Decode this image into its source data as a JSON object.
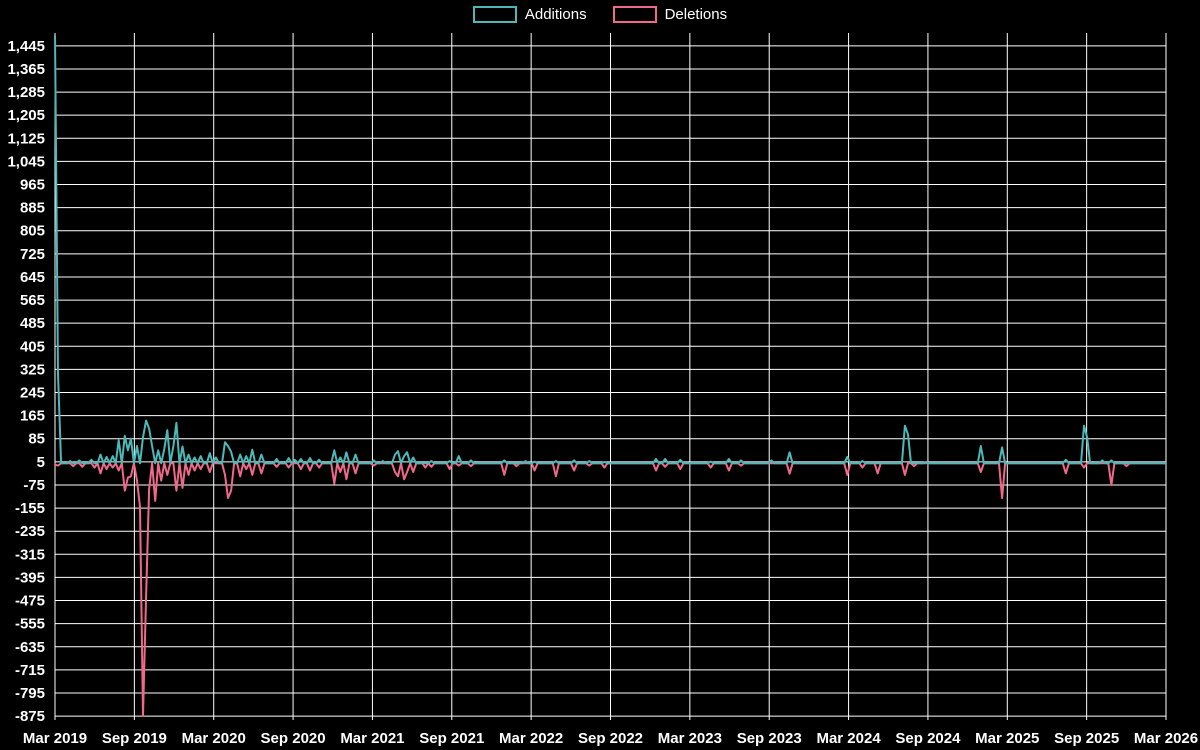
{
  "legend": {
    "items": [
      {
        "label": "Additions",
        "color": "#4cb8b8"
      },
      {
        "label": "Deletions",
        "color": "#f2688c"
      }
    ]
  },
  "chart_data": {
    "type": "line",
    "title": "",
    "xlabel": "",
    "ylabel": "",
    "legend_position": "top-center",
    "grid": true,
    "background_color": "#000000",
    "grid_color": "#ffffff",
    "text_color": "#ffffff",
    "series_colors": {
      "additions": "#4cb8b8",
      "deletions": "#f2688c"
    },
    "y_axis": {
      "min": -875,
      "max": 1445,
      "step": 80
    },
    "y_ticks": [
      {
        "v": 1445,
        "label": "1,445"
      },
      {
        "v": 1365,
        "label": "1,365"
      },
      {
        "v": 1285,
        "label": "1,285"
      },
      {
        "v": 1205,
        "label": "1,205"
      },
      {
        "v": 1125,
        "label": "1,125"
      },
      {
        "v": 1045,
        "label": "1,045"
      },
      {
        "v": 965,
        "label": "965"
      },
      {
        "v": 885,
        "label": "885"
      },
      {
        "v": 805,
        "label": "805"
      },
      {
        "v": 725,
        "label": "725"
      },
      {
        "v": 645,
        "label": "645"
      },
      {
        "v": 565,
        "label": "565"
      },
      {
        "v": 485,
        "label": "485"
      },
      {
        "v": 405,
        "label": "405"
      },
      {
        "v": 325,
        "label": "325"
      },
      {
        "v": 245,
        "label": "245"
      },
      {
        "v": 165,
        "label": "165"
      },
      {
        "v": 85,
        "label": "85"
      },
      {
        "v": 5,
        "label": "5"
      },
      {
        "v": -75,
        "label": "-75"
      },
      {
        "v": -155,
        "label": "-155"
      },
      {
        "v": -235,
        "label": "-235"
      },
      {
        "v": -315,
        "label": "-315"
      },
      {
        "v": -395,
        "label": "-395"
      },
      {
        "v": -475,
        "label": "-475"
      },
      {
        "v": -555,
        "label": "-555"
      },
      {
        "v": -635,
        "label": "-635"
      },
      {
        "v": -715,
        "label": "-715"
      },
      {
        "v": -795,
        "label": "-795"
      },
      {
        "v": -875,
        "label": "-875"
      }
    ],
    "x_ticks": [
      "Mar 2019",
      "Sep 2019",
      "Mar 2020",
      "Sep 2020",
      "Mar 2021",
      "Sep 2021",
      "Mar 2022",
      "Sep 2022",
      "Mar 2023",
      "Sep 2023",
      "Mar 2024",
      "Sep 2024",
      "Mar 2025",
      "Sep 2025",
      "Mar 2026"
    ],
    "x_unit": "week",
    "weeks": 367,
    "baseline_value": 0,
    "series": [
      {
        "name": "Additions",
        "peak": 1481,
        "spikes": {
          "0": 1481,
          "1": 310,
          "5": 8,
          "8": 10,
          "12": 12,
          "15": 30,
          "17": 22,
          "19": 25,
          "21": 80,
          "23": 95,
          "24": 45,
          "25": 85,
          "27": 60,
          "29": 90,
          "30": 148,
          "31": 120,
          "32": 60,
          "34": 45,
          "36": 50,
          "37": 115,
          "39": 60,
          "40": 140,
          "42": 58,
          "44": 30,
          "46": 20,
          "48": 25,
          "51": 35,
          "53": 20,
          "56": 73,
          "57": 60,
          "58": 40,
          "61": 30,
          "63": 25,
          "65": 47,
          "68": 30,
          "73": 15,
          "77": 18,
          "79": 12,
          "81": 15,
          "84": 18,
          "87": 12,
          "92": 45,
          "94": 20,
          "96": 38,
          "99": 30,
          "105": 10,
          "108": 8,
          "112": 30,
          "113": 42,
          "115": 25,
          "116": 38,
          "118": 20,
          "124": 8,
          "130": 8,
          "133": 25,
          "137": 10,
          "148": 10,
          "155": 8,
          "158": 6,
          "165": 8,
          "171": 10,
          "176": 8,
          "181": 5,
          "198": 15,
          "201": 15,
          "206": 12,
          "216": 6,
          "222": 15,
          "226": 10,
          "236": 10,
          "242": 38,
          "261": 22,
          "266": 8,
          "280": 130,
          "281": 100,
          "287": 5,
          "305": 60,
          "312": 55,
          "333": 12,
          "339": 130,
          "340": 90,
          "345": 10,
          "348": 10
        }
      },
      {
        "name": "Deletions",
        "trough": -875,
        "spikes": {
          "0": -5,
          "1": -8,
          "6": -10,
          "9": -12,
          "13": -15,
          "15": -35,
          "17": -20,
          "19": -15,
          "21": -25,
          "23": -95,
          "24": -50,
          "25": -45,
          "27": -60,
          "28": -150,
          "29": -875,
          "30": -460,
          "31": -90,
          "33": -130,
          "35": -60,
          "37": -40,
          "40": -95,
          "42": -85,
          "44": -40,
          "46": -25,
          "48": -20,
          "51": -30,
          "56": -40,
          "57": -120,
          "58": -95,
          "61": -45,
          "63": -20,
          "65": -40,
          "68": -35,
          "73": -12,
          "77": -15,
          "81": -20,
          "84": -25,
          "87": -15,
          "92": -70,
          "94": -30,
          "96": -55,
          "99": -35,
          "105": -8,
          "112": -30,
          "113": -45,
          "115": -55,
          "116": -30,
          "118": -30,
          "122": -15,
          "124": -12,
          "130": -20,
          "133": -8,
          "137": -10,
          "148": -40,
          "152": -10,
          "158": -25,
          "165": -45,
          "171": -25,
          "176": -8,
          "181": -15,
          "198": -25,
          "201": -12,
          "206": -20,
          "216": -15,
          "222": -25,
          "226": -8,
          "242": -36,
          "261": -40,
          "266": -15,
          "271": -35,
          "280": -40,
          "283": -10,
          "305": -30,
          "312": -120,
          "333": -35,
          "339": -15,
          "348": -75,
          "353": -10
        }
      }
    ]
  }
}
